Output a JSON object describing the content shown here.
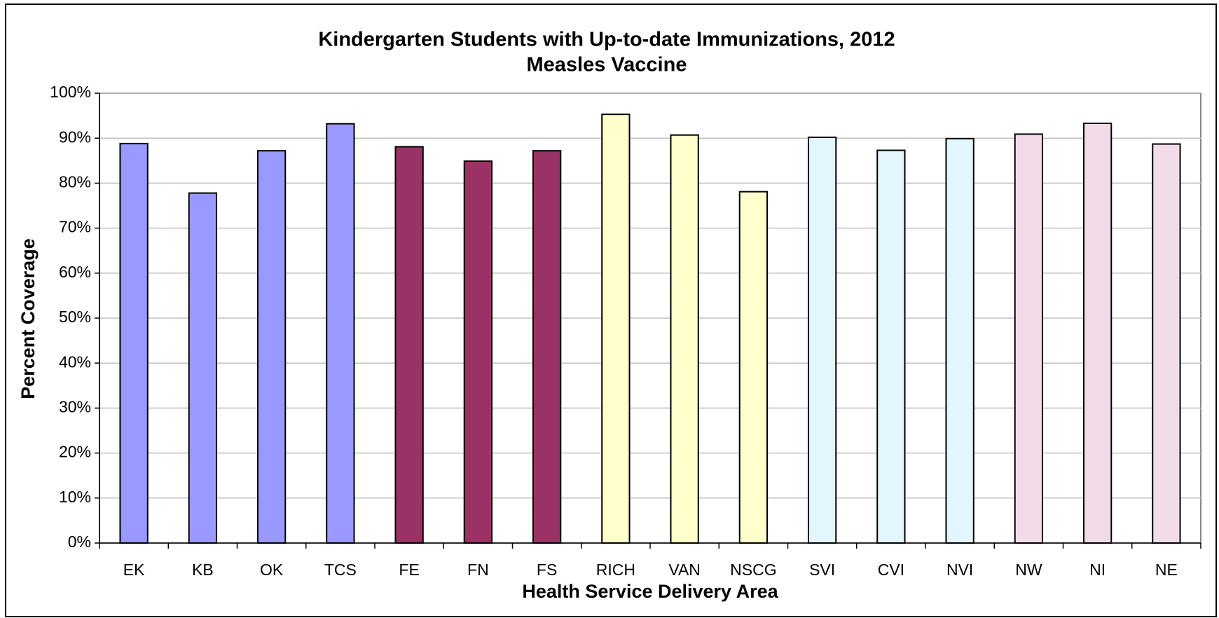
{
  "chart_data": {
    "type": "bar",
    "title": "Kindergarten Students with Up-to-date Immunizations, 2012",
    "subtitle": "Measles Vaccine",
    "x_label": "Health Service Delivery Area",
    "y_label": "Percent Coverage",
    "categories": [
      "EK",
      "KB",
      "OK",
      "TCS",
      "FE",
      "FN",
      "FS",
      "RICH",
      "VAN",
      "NSCG",
      "SVI",
      "CVI",
      "NVI",
      "NW",
      "NI",
      "NE"
    ],
    "values": [
      88.8,
      77.8,
      87.2,
      93.2,
      88.1,
      84.9,
      87.2,
      95.3,
      90.7,
      78.1,
      90.2,
      87.3,
      89.9,
      90.9,
      93.3,
      88.7
    ],
    "colors": [
      "#9999ff",
      "#9999ff",
      "#9999ff",
      "#9999ff",
      "#993366",
      "#993366",
      "#993366",
      "#ffffcc",
      "#ffffcc",
      "#ffffcc",
      "#e3f5fd",
      "#e3f5fd",
      "#e3f5fd",
      "#f2dbe8",
      "#f2dbe8",
      "#f2dbe8"
    ],
    "ylim": [
      0,
      100
    ],
    "yticks": [
      {
        "value": 0,
        "label": "0%"
      },
      {
        "value": 10,
        "label": "10%"
      },
      {
        "value": 20,
        "label": "20%"
      },
      {
        "value": 30,
        "label": "30%"
      },
      {
        "value": 40,
        "label": "40%"
      },
      {
        "value": 50,
        "label": "50%"
      },
      {
        "value": 60,
        "label": "60%"
      },
      {
        "value": 70,
        "label": "70%"
      },
      {
        "value": 80,
        "label": "80%"
      },
      {
        "value": 90,
        "label": "90%"
      },
      {
        "value": 100,
        "label": "100%"
      }
    ],
    "grid": true
  }
}
